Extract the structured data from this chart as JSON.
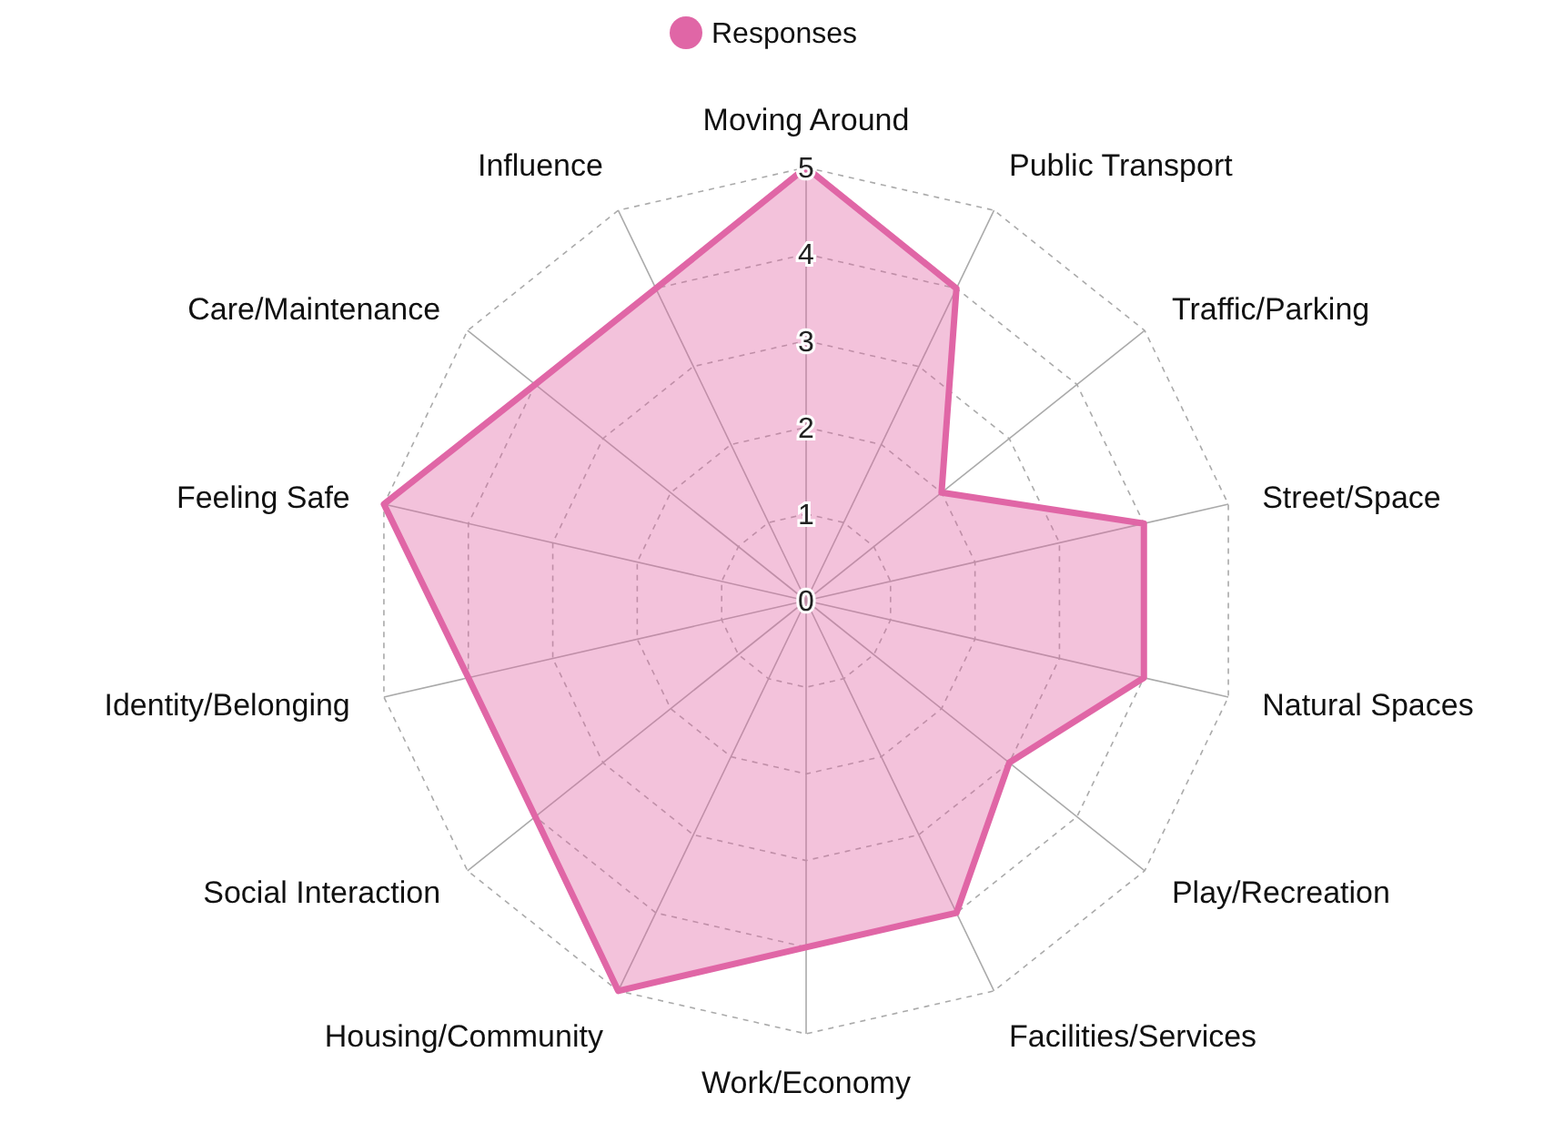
{
  "chart_data": {
    "type": "radar",
    "categories": [
      "Moving Around",
      "Public Transport",
      "Traffic/Parking",
      "Street/Space",
      "Natural Spaces",
      "Play/Recreation",
      "Facilities/Services",
      "Work/Economy",
      "Housing/Community",
      "Social Interaction",
      "Identity/Belonging",
      "Feeling Safe",
      "Care/Maintenance",
      "Influence"
    ],
    "series": [
      {
        "name": "Responses",
        "color": "#e066a6",
        "values": [
          5,
          4,
          2,
          4,
          4,
          3,
          4,
          4,
          5,
          4,
          4,
          5,
          4,
          4
        ]
      }
    ],
    "ylim": [
      0,
      5
    ],
    "yticks": [
      0,
      1,
      2,
      3,
      4,
      5
    ],
    "grid": true,
    "legend": "top",
    "marker": "none"
  }
}
